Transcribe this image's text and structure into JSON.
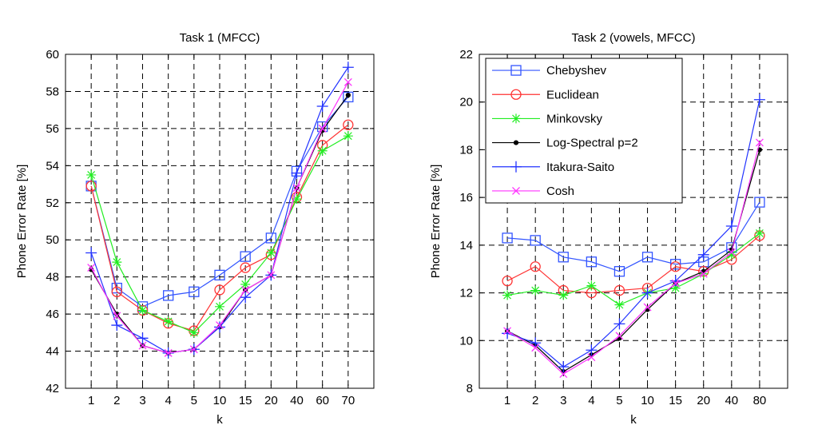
{
  "chart_data": [
    {
      "type": "line",
      "title": "Task 1 (MFCC)",
      "xlabel": "k",
      "ylabel": "Phone Error Rate [%]",
      "categories": [
        "1",
        "2",
        "3",
        "4",
        "5",
        "10",
        "15",
        "20",
        "40",
        "60",
        "70"
      ],
      "ylim": [
        42,
        60
      ],
      "yticks": [
        "42",
        "44",
        "46",
        "48",
        "50",
        "52",
        "54",
        "56",
        "58",
        "60"
      ],
      "grid": true,
      "legend": "none",
      "series": [
        {
          "name": "Chebyshev",
          "color": "#3355ff",
          "marker": "square",
          "values": [
            52.9,
            47.4,
            46.4,
            47.0,
            47.2,
            48.1,
            49.1,
            50.1,
            53.7,
            56.1,
            57.7
          ]
        },
        {
          "name": "Euclidean",
          "color": "#ff3333",
          "marker": "circle",
          "values": [
            52.9,
            47.2,
            46.2,
            45.5,
            45.1,
            47.3,
            48.5,
            49.2,
            52.3,
            55.1,
            56.2
          ]
        },
        {
          "name": "Minkovsky",
          "color": "#22ee22",
          "marker": "star",
          "values": [
            53.5,
            48.8,
            46.2,
            45.6,
            45.0,
            46.4,
            47.6,
            49.3,
            52.2,
            54.8,
            55.6
          ]
        },
        {
          "name": "Log-Spectral p=2",
          "color": "#000000",
          "marker": "dot",
          "values": [
            48.4,
            46.0,
            44.3,
            43.9,
            44.1,
            45.3,
            47.3,
            48.1,
            52.8,
            55.9,
            57.8
          ]
        },
        {
          "name": "Itakura-Saito",
          "color": "#2233ff",
          "marker": "plus",
          "values": [
            49.3,
            45.4,
            44.7,
            43.9,
            44.1,
            45.3,
            46.9,
            48.1,
            53.6,
            57.2,
            59.3
          ]
        },
        {
          "name": "Cosh",
          "color": "#ff33ff",
          "marker": "x",
          "values": [
            48.5,
            45.9,
            44.3,
            43.9,
            44.1,
            45.4,
            47.3,
            48.1,
            52.8,
            56.0,
            58.5
          ]
        }
      ]
    },
    {
      "type": "line",
      "title": "Task 2 (vowels, MFCC)",
      "xlabel": "k",
      "ylabel": "Phone Error Rate [%]",
      "categories": [
        "1",
        "2",
        "3",
        "4",
        "5",
        "10",
        "15",
        "20",
        "40",
        "80"
      ],
      "ylim": [
        8,
        22
      ],
      "yticks": [
        "8",
        "10",
        "12",
        "14",
        "16",
        "18",
        "20",
        "22"
      ],
      "grid": true,
      "legend": "top-left",
      "series": [
        {
          "name": "Chebyshev",
          "color": "#3355ff",
          "marker": "square",
          "values": [
            14.3,
            14.2,
            13.5,
            13.3,
            12.9,
            13.5,
            13.2,
            13.3,
            13.9,
            15.8
          ]
        },
        {
          "name": "Euclidean",
          "color": "#ff3333",
          "marker": "circle",
          "values": [
            12.5,
            13.1,
            12.1,
            12.0,
            12.1,
            12.2,
            13.1,
            12.9,
            13.4,
            14.4
          ]
        },
        {
          "name": "Minkovsky",
          "color": "#22ee22",
          "marker": "star",
          "values": [
            11.9,
            12.1,
            11.9,
            12.3,
            11.5,
            12.0,
            12.2,
            12.8,
            13.6,
            14.5
          ]
        },
        {
          "name": "Log-Spectral p=2",
          "color": "#000000",
          "marker": "dot",
          "values": [
            10.4,
            9.8,
            8.7,
            9.4,
            10.1,
            11.3,
            12.4,
            12.9,
            13.8,
            18.0
          ]
        },
        {
          "name": "Itakura-Saito",
          "color": "#2233ff",
          "marker": "plus",
          "values": [
            10.3,
            9.9,
            8.9,
            9.6,
            10.7,
            12.0,
            12.5,
            13.6,
            14.8,
            20.1
          ]
        },
        {
          "name": "Cosh",
          "color": "#ff33ff",
          "marker": "x",
          "values": [
            10.4,
            9.7,
            8.6,
            9.3,
            10.2,
            11.4,
            12.4,
            12.8,
            13.7,
            18.3
          ]
        }
      ]
    }
  ]
}
